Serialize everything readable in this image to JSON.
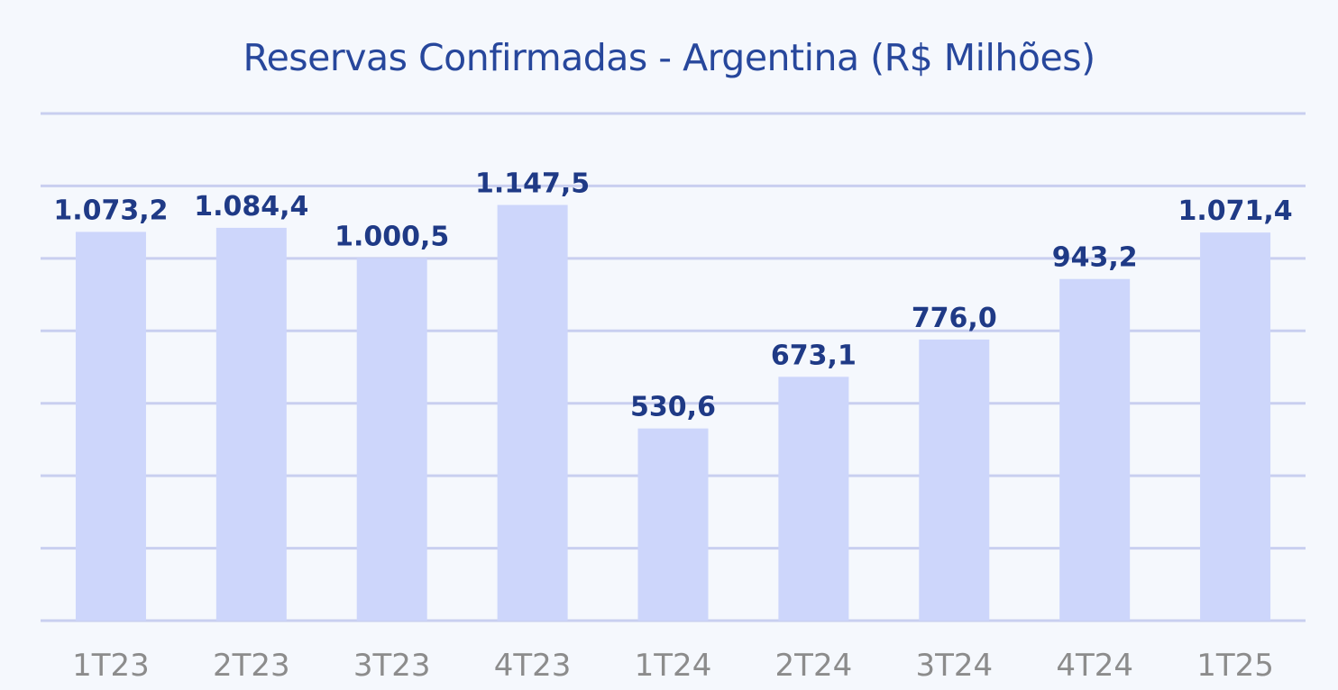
{
  "chart_data": {
    "type": "bar",
    "title": "Reservas Confirmadas - Argentina (R$ Milhões)",
    "categories": [
      "1T23",
      "2T23",
      "3T23",
      "4T23",
      "1T24",
      "2T24",
      "3T24",
      "4T24",
      "1T25"
    ],
    "values": [
      1073.2,
      1084.4,
      1000.5,
      1147.5,
      530.6,
      673.1,
      776.0,
      943.2,
      1071.4
    ],
    "data_labels": [
      "1.073,2",
      "1.084,4",
      "1.000,5",
      "1.147,5",
      "530,6",
      "673,1",
      "776,0",
      "943,2",
      "1.071,4"
    ],
    "ylim": [
      0,
      1400
    ],
    "grid": true,
    "legend": "none",
    "colors": {
      "bar": "#cdd6fb",
      "grid": "#c9cff0",
      "title": "#27479c",
      "data_label": "#1f3a86",
      "tick_label": "#8c8c8c",
      "background": "#f5f8fd"
    }
  }
}
